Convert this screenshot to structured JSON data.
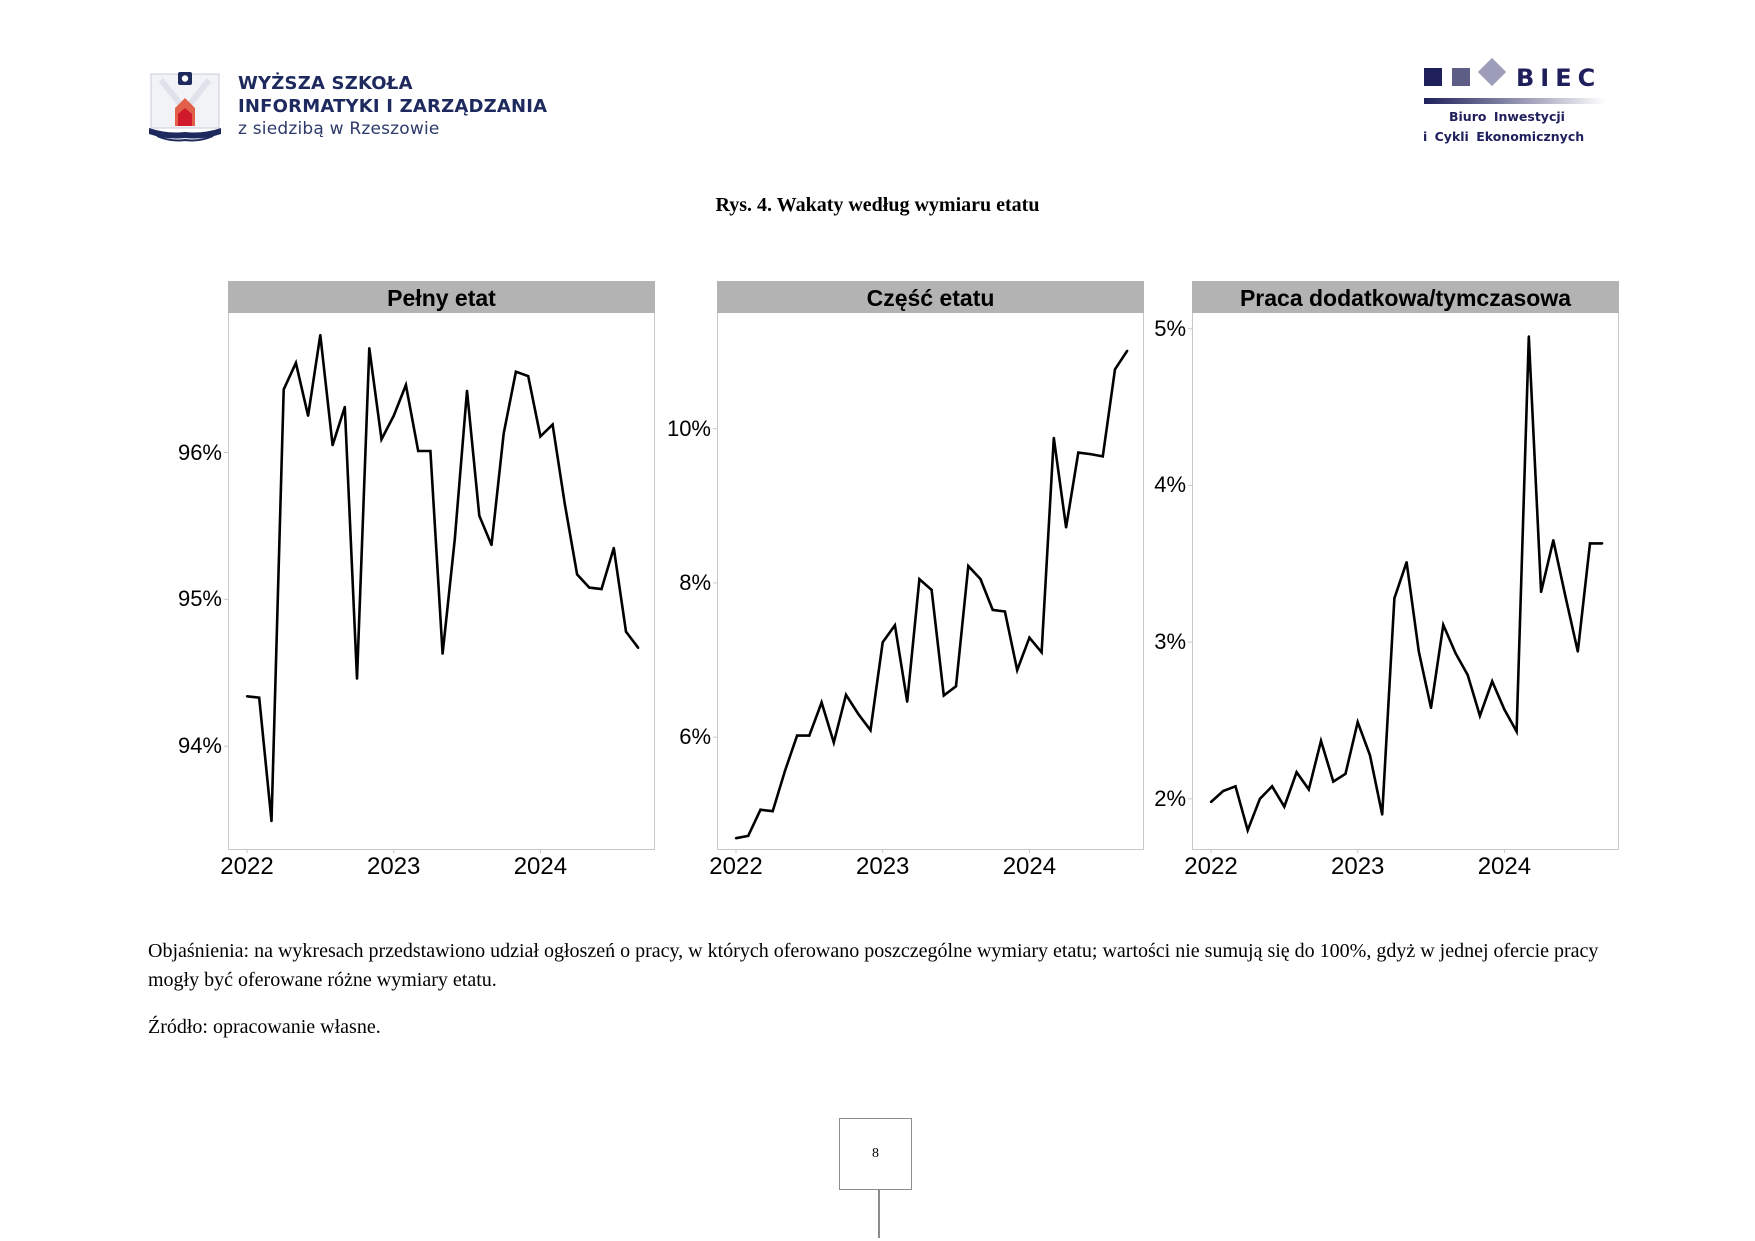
{
  "header": {
    "left_logo": {
      "lines": [
        "WYŻSZA SZKOŁA",
        "INFORMATYKI I ZARZĄDZANIA",
        "z siedzibą w Rzeszowie"
      ],
      "icon": "university-emblem-icon",
      "colors": {
        "text": "#1e2a5e",
        "accent": "#d0192a"
      }
    },
    "right_logo": {
      "wordmark": "BIEC",
      "lines": [
        "Biuro  Inwestycji",
        "i  Cykli   Ekonomicznych"
      ],
      "colors": {
        "primary": "#1f1f5c",
        "secondary": "#5d5d85",
        "tertiary": "#9b9dbb"
      }
    }
  },
  "figure": {
    "title": "Rys. 4. Wakaty według wymiaru etatu"
  },
  "chart_data": [
    {
      "type": "line",
      "title": "Pełny etat",
      "xlabel": "",
      "ylabel": "",
      "x_start": "2022-01",
      "x_frequency": "monthly",
      "x_ticks": [
        "2022",
        "2023",
        "2024"
      ],
      "y_ticks": [
        94,
        95,
        96
      ],
      "y_tick_labels": [
        "94%",
        "95%",
        "96%"
      ],
      "ylim": [
        93.3,
        96.95
      ],
      "grid": false,
      "line_color": "#000000",
      "values": [
        94.34,
        94.33,
        93.49,
        96.43,
        96.61,
        96.25,
        96.8,
        96.05,
        96.31,
        94.46,
        96.71,
        96.09,
        96.25,
        96.46,
        96.01,
        96.01,
        94.63,
        95.41,
        96.42,
        95.57,
        95.37,
        96.13,
        96.55,
        96.52,
        96.11,
        96.19,
        95.65,
        95.17,
        95.08,
        95.07,
        95.35,
        94.78,
        94.67
      ]
    },
    {
      "type": "line",
      "title": "Część etatu",
      "xlabel": "",
      "ylabel": "",
      "x_start": "2022-01",
      "x_frequency": "monthly",
      "x_ticks": [
        "2022",
        "2023",
        "2024"
      ],
      "y_ticks": [
        6,
        8,
        10
      ],
      "y_tick_labels": [
        "6%",
        "8%",
        "10%"
      ],
      "ylim": [
        4.55,
        11.5
      ],
      "grid": false,
      "line_color": "#000000",
      "values": [
        4.69,
        4.72,
        5.06,
        5.04,
        5.56,
        6.02,
        6.02,
        6.45,
        5.93,
        6.55,
        6.3,
        6.09,
        7.23,
        7.45,
        6.46,
        8.05,
        7.91,
        6.54,
        6.66,
        8.22,
        8.05,
        7.65,
        7.63,
        6.87,
        7.29,
        7.1,
        9.88,
        8.72,
        9.69,
        9.67,
        9.64,
        10.77,
        11.01
      ]
    },
    {
      "type": "line",
      "title": "Praca dodatkowa/tymczasowa",
      "xlabel": "",
      "ylabel": "",
      "x_start": "2022-01",
      "x_frequency": "monthly",
      "x_ticks": [
        "2022",
        "2023",
        "2024"
      ],
      "y_ticks": [
        2,
        3,
        4,
        5
      ],
      "y_tick_labels": [
        "2%",
        "3%",
        "4%",
        "5%"
      ],
      "ylim": [
        1.68,
        5.1
      ],
      "grid": false,
      "line_color": "#000000",
      "values": [
        1.98,
        2.05,
        2.08,
        1.8,
        2.0,
        2.08,
        1.95,
        2.17,
        2.06,
        2.37,
        2.11,
        2.16,
        2.49,
        2.28,
        1.9,
        3.28,
        3.51,
        2.94,
        2.58,
        3.11,
        2.93,
        2.79,
        2.53,
        2.75,
        2.57,
        2.43,
        4.95,
        3.32,
        3.65,
        3.29,
        2.94,
        3.63,
        3.63
      ]
    }
  ],
  "caption": {
    "note": "Objaśnienia: na wykresach przedstawiono udział ogłoszeń o pracy, w których oferowano poszczególne wymiary etatu; wartości nie sumują się do 100%, gdyż w jednej ofercie pracy mogły być oferowane różne wymiary etatu.",
    "source": "Źródło: opracowanie własne."
  },
  "footer": {
    "page_number": "8"
  }
}
